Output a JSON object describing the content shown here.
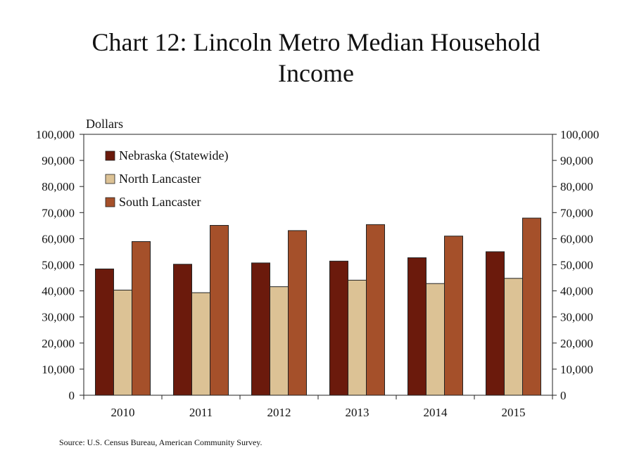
{
  "chart_data": {
    "type": "bar",
    "title": "Chart 12: Lincoln Metro Median Household Income",
    "title_lines": [
      "Chart 12: Lincoln Metro Median Household",
      "Income"
    ],
    "ylabel": "Dollars",
    "xlabel": "",
    "categories": [
      "2010",
      "2011",
      "2012",
      "2013",
      "2014",
      "2015"
    ],
    "series": [
      {
        "name": "Nebraska (Statewide)",
        "color": "#6b1a0c",
        "values": [
          48400,
          50200,
          50700,
          51400,
          52700,
          55000
        ]
      },
      {
        "name": "North Lancaster",
        "color": "#dcc295",
        "values": [
          40300,
          39300,
          41600,
          44100,
          42800,
          44800
        ]
      },
      {
        "name": "South Lancaster",
        "color": "#a5502a",
        "values": [
          58900,
          65100,
          63100,
          65400,
          61000,
          67900
        ]
      }
    ],
    "ylim": [
      0,
      100000
    ],
    "yticks": [
      "0",
      "10,000",
      "20,000",
      "30,000",
      "40,000",
      "50,000",
      "60,000",
      "70,000",
      "80,000",
      "90,000",
      "100,000"
    ],
    "legend_position": "top-left",
    "grid": false,
    "source": "Source: U.S. Census Bureau, American Community Survey."
  }
}
